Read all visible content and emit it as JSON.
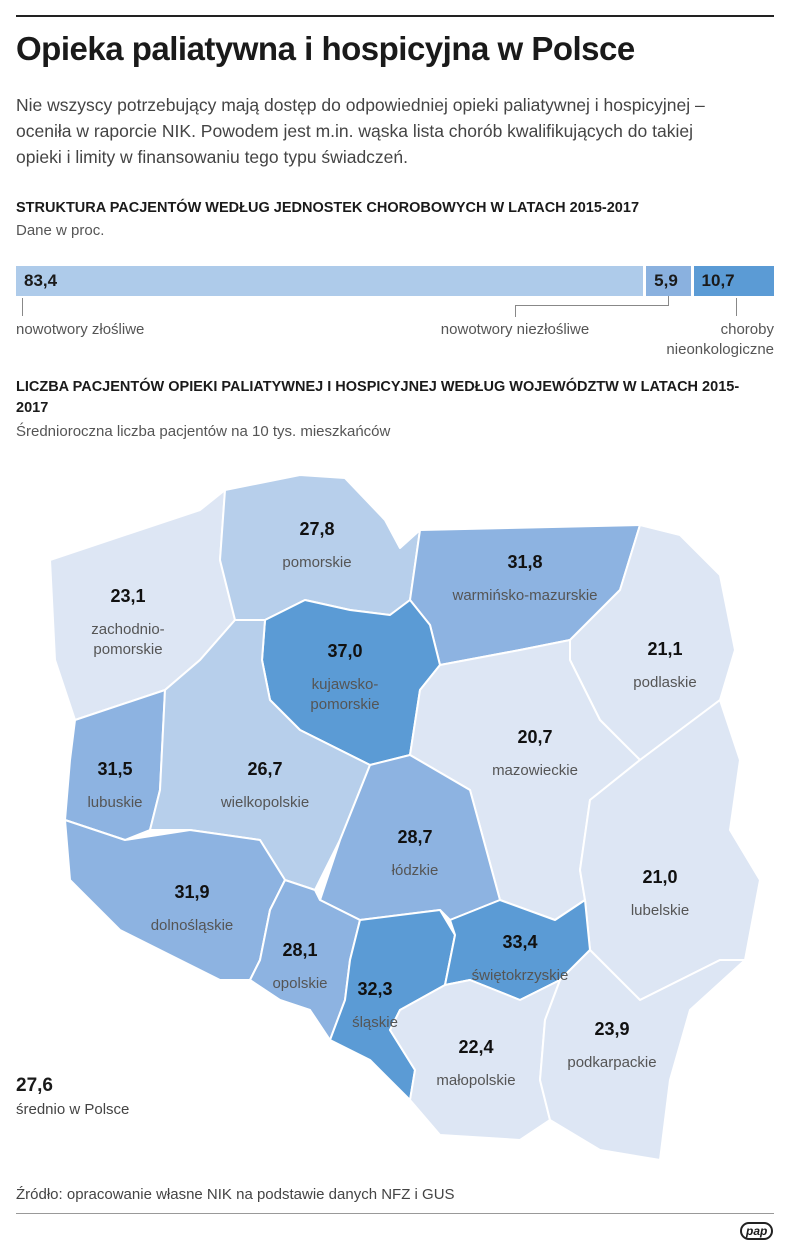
{
  "title": "Opieka paliatywna i hospicyjna w Polsce",
  "intro": "Nie wszyscy potrzebujący mają dostęp do odpowiedniej opieki paliatywnej i hospicyjnej – oceniła w raporcie NIK. Powodem jest m.in. wąska lista chorób kwalifikujących do takiej opieki i limity w finansowaniu tego typu świadczeń.",
  "chart_data": [
    {
      "type": "stacked-bar",
      "title": "STRUKTURA PACJENTÓW WEDŁUG JEDNOSTEK CHOROBOWYCH W LATACH 2015-2017",
      "subtitle": "Dane w proc.",
      "series": [
        {
          "name": "nowotwory złośliwe",
          "color": "#aecbea",
          "values": [
            83.4
          ],
          "value_labels": [
            "83,4"
          ]
        },
        {
          "name": "nowotwory niezłośliwe",
          "color": "#8ab1df",
          "values": [
            5.9
          ],
          "value_labels": [
            "5,9"
          ]
        },
        {
          "name": "choroby nieonkologiczne",
          "color": "#5b9bd5",
          "values": [
            10.7
          ],
          "value_labels": [
            "10,7"
          ]
        }
      ]
    },
    {
      "type": "map",
      "title": "LICZBA PACJENTÓW OPIEKI PALIATYWNEJ I HOSPICYJNEJ WEDŁUG WOJEWÓDZTW W LATACH 2015-2017",
      "subtitle": "Średnioroczna liczba pacjentów na 10 tys. mieszkańców",
      "categories": [
        "zachodnio-pomorskie",
        "pomorskie",
        "warmińsko-mazurskie",
        "kujawsko-pomorskie",
        "podlaskie",
        "mazowieckie",
        "lubuskie",
        "wielkopolskie",
        "łódzkie",
        "lubelskie",
        "dolnośląskie",
        "opolskie",
        "śląskie",
        "świętokrzyskie",
        "małopolskie",
        "podkarpackie"
      ],
      "values": [
        23.1,
        27.8,
        31.8,
        37.0,
        21.1,
        20.7,
        31.5,
        26.7,
        28.7,
        21.0,
        31.9,
        28.1,
        32.3,
        33.4,
        22.4,
        23.9
      ],
      "value_labels": [
        "23,1",
        "27,8",
        "31,8",
        "37,0",
        "21,1",
        "20,7",
        "31,5",
        "26,7",
        "28,7",
        "21,0",
        "31,9",
        "28,1",
        "32,3",
        "33,4",
        "22,4",
        "23,9"
      ],
      "colors": [
        "#dde6f4",
        "#b7cfeb",
        "#8db3e1",
        "#5b9bd5",
        "#dde6f4",
        "#dde6f4",
        "#8db3e1",
        "#b7cfeb",
        "#8db3e1",
        "#dde6f4",
        "#8db3e1",
        "#8db3e1",
        "#5b9bd5",
        "#5b9bd5",
        "#dde6f4",
        "#dde6f4"
      ],
      "average": 27.6,
      "average_label": "27,6",
      "average_caption": "średnio w Polsce"
    }
  ],
  "source": "Źródło: opracowanie własne NIK na podstawie danych NFZ i GUS",
  "logo": "pap"
}
